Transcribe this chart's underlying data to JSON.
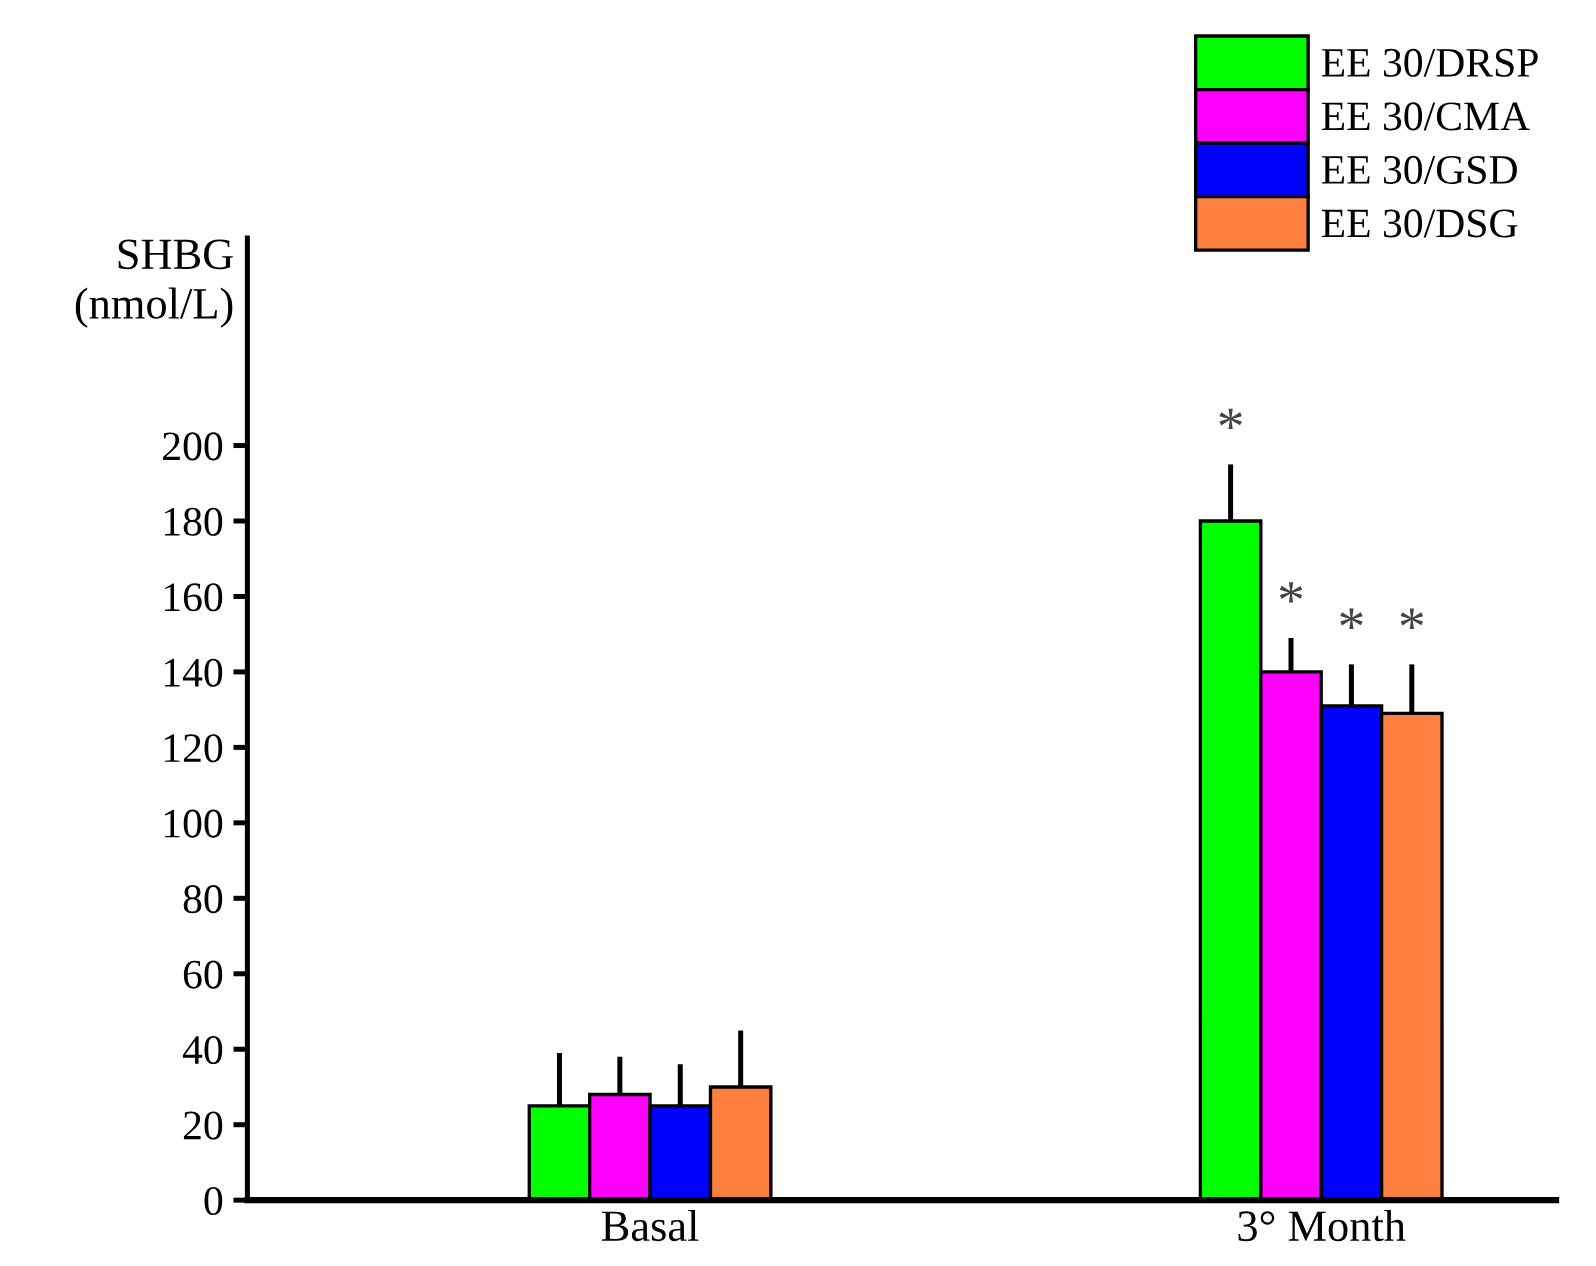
{
  "chart_data": {
    "type": "bar",
    "ylabel": "SHBG\n(nmol/L)",
    "categories": [
      "Basal",
      "3° Month"
    ],
    "series": [
      {
        "name": "EE 30/DRSP",
        "color": "#00ff00",
        "values": [
          25,
          180
        ],
        "errors": [
          14,
          15
        ],
        "value_labels": [
          null,
          "*"
        ]
      },
      {
        "name": "EE 30/CMA",
        "color": "#ff00ff",
        "values": [
          28,
          140
        ],
        "errors": [
          10,
          9
        ],
        "value_labels": [
          null,
          "*"
        ]
      },
      {
        "name": "EE 30/GSD",
        "color": "#0000ff",
        "values": [
          25,
          131
        ],
        "errors": [
          11,
          11
        ],
        "value_labels": [
          null,
          "*"
        ]
      },
      {
        "name": "EE 30/DSG",
        "color": "#ff7f3f",
        "values": [
          30,
          129
        ],
        "errors": [
          15,
          13
        ],
        "value_labels": [
          null,
          "*"
        ]
      }
    ],
    "ylim": [
      0,
      255
    ],
    "yticks": [
      0,
      20,
      40,
      60,
      80,
      100,
      120,
      140,
      160,
      180,
      200
    ],
    "grid": false,
    "legend": "top right"
  }
}
